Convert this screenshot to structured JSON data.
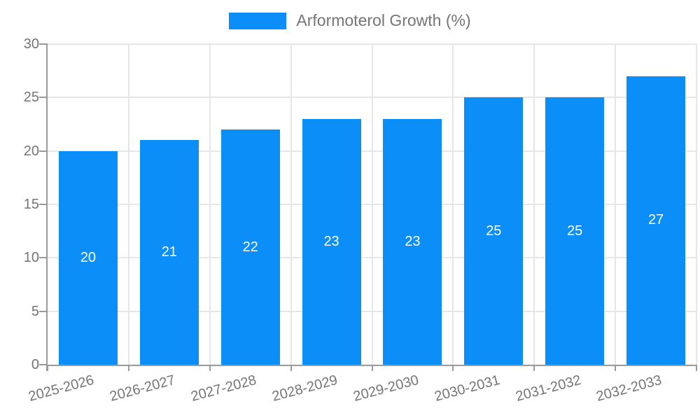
{
  "legend": {
    "label": "Arformoterol Growth (%)"
  },
  "colors": {
    "bar": "#0c8ef8",
    "grid": "#e6e6e6",
    "axis": "#9a9a9a",
    "tick_text": "#757575",
    "value_text": "#ffffff",
    "legend_text": "#757575"
  },
  "chart_data": {
    "type": "bar",
    "title": "",
    "xlabel": "",
    "ylabel": "",
    "categories": [
      "2025-2026",
      "2026-2027",
      "2027-2028",
      "2028-2029",
      "2029-2030",
      "2030-2031",
      "2031-2032",
      "2032-2033"
    ],
    "series": [
      {
        "name": "Arformoterol Growth (%)",
        "values": [
          20,
          21,
          22,
          23,
          23,
          25,
          25,
          27
        ]
      }
    ],
    "ylim": [
      0,
      30
    ],
    "yticks": [
      0,
      5,
      10,
      15,
      20,
      25,
      30
    ],
    "grid": true,
    "legend_position": "top",
    "show_bar_value_labels": true
  }
}
